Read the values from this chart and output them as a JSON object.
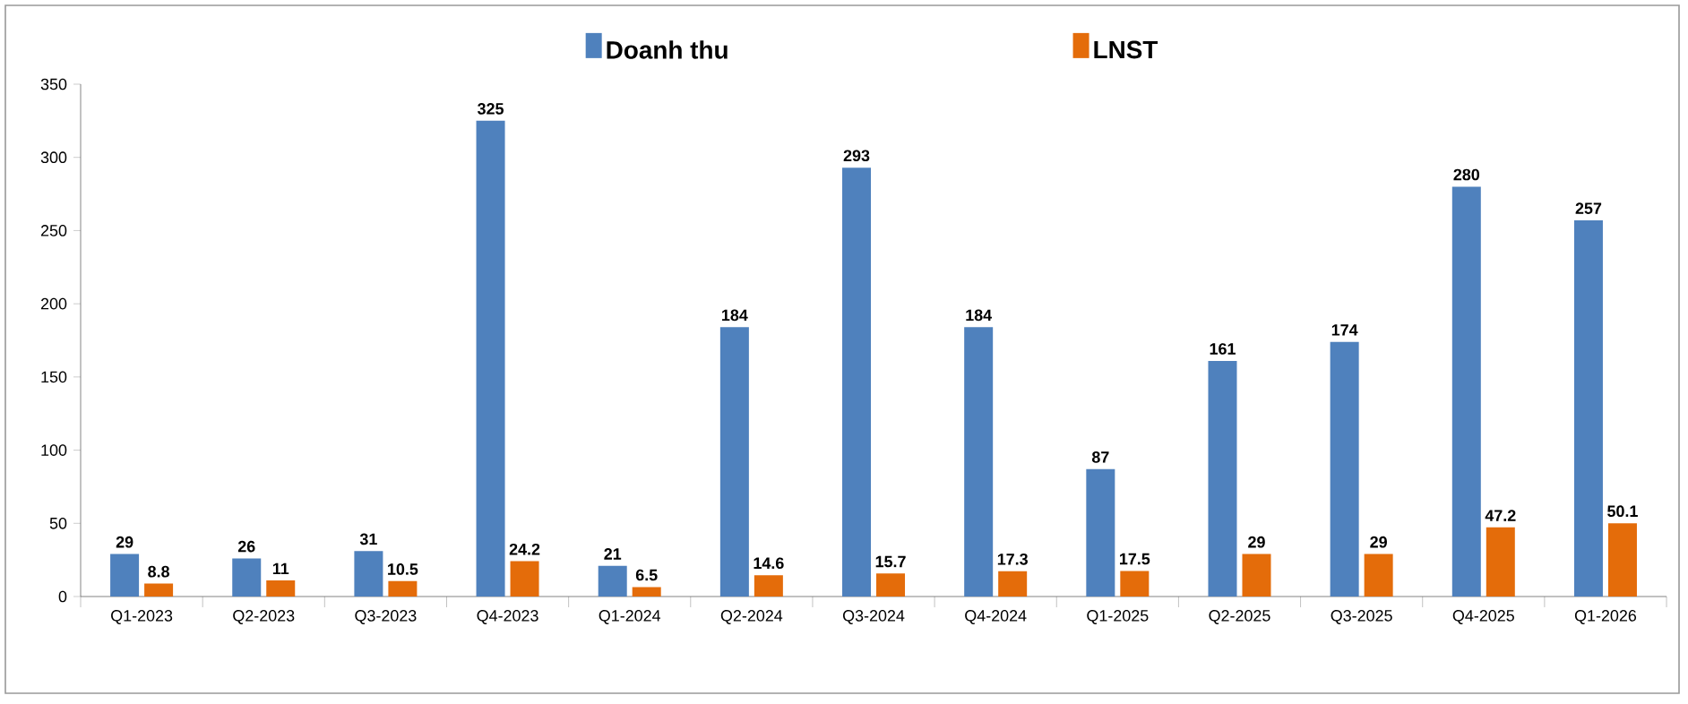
{
  "chart_data": {
    "type": "bar",
    "categories": [
      "Q1-2023",
      "Q2-2023",
      "Q3-2023",
      "Q4-2023",
      "Q1-2024",
      "Q2-2024",
      "Q3-2024",
      "Q4-2024",
      "Q1-2025",
      "Q2-2025",
      "Q3-2025",
      "Q4-2025",
      "Q1-2026"
    ],
    "series": [
      {
        "name": "Doanh thu",
        "color": "#4f81bd",
        "values": [
          29,
          26,
          31,
          325,
          21,
          184,
          293,
          184,
          87,
          161,
          174,
          280,
          257
        ]
      },
      {
        "name": "LNST",
        "color": "#e46c0a",
        "values": [
          8.8,
          11,
          10.5,
          24.2,
          6.5,
          14.6,
          15.7,
          17.3,
          17.5,
          29,
          29,
          47.2,
          50.1
        ]
      }
    ],
    "ylim": [
      0,
      350
    ],
    "yticks": [
      0,
      50,
      100,
      150,
      200,
      250,
      300,
      350
    ],
    "data_labels": true,
    "legend": "top",
    "grid": false
  }
}
